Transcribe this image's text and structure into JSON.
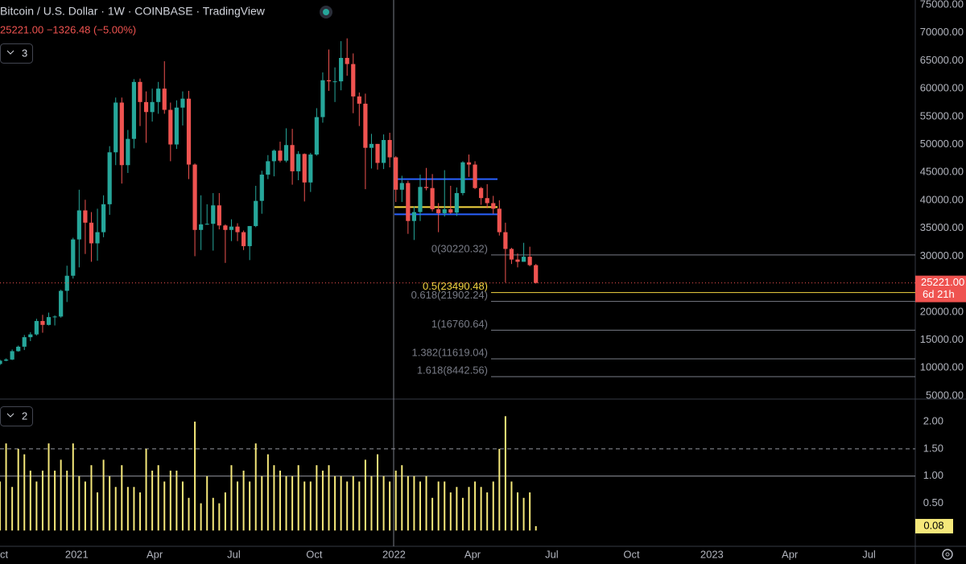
{
  "chart_data": [
    {
      "type": "candlestick",
      "title": "Bitcoin / U.S. Dollar · 1W · COINBASE · TradingView",
      "subtitle": "25221.00  −1326.48 (−5.00%)",
      "legend_count": "3",
      "categories": [
        null,
        null,
        null,
        null,
        null,
        null,
        null,
        null,
        null,
        null,
        null,
        null,
        null,
        null,
        null,
        null,
        null,
        null,
        null,
        null,
        null,
        null,
        null,
        null,
        null,
        null,
        null,
        null,
        null,
        null,
        null,
        null,
        null,
        null,
        null,
        null,
        null,
        null,
        null,
        null,
        null,
        null,
        null,
        null,
        null,
        null,
        null,
        null,
        null,
        null,
        null,
        null,
        null,
        null,
        null,
        null,
        null,
        null,
        null,
        null,
        null,
        null,
        null,
        null,
        null,
        null,
        null,
        null,
        null,
        null,
        null,
        null,
        null,
        null,
        null,
        null,
        null,
        null,
        null,
        null,
        null,
        null,
        null,
        null,
        null,
        null,
        null,
        null,
        null
      ],
      "open": [
        10700,
        11300,
        11500,
        13000,
        13800,
        15500,
        16000,
        18400,
        17700,
        19100,
        19200,
        23800,
        26500,
        33000,
        38200,
        36000,
        32300,
        34300,
        39300,
        48600,
        57500,
        46300,
        51000,
        61200,
        57600,
        55800,
        57600,
        60000,
        56200,
        50000,
        56600,
        58200,
        46400,
        34700,
        35700,
        35800,
        39100,
        35500,
        34700,
        35300,
        34300,
        31800,
        35400,
        39900,
        44600,
        47000,
        48900,
        47100,
        49900,
        45200,
        48300,
        43200,
        48200,
        54900,
        61500,
        61300,
        61300,
        65500,
        64400,
        58600,
        57300,
        49400,
        50100,
        46700,
        50800,
        47700,
        41900,
        43100,
        36300,
        37900,
        42400,
        42200,
        38400,
        37700,
        38400,
        37800,
        41300,
        46800,
        46400,
        42200,
        40400,
        39500,
        38500,
        34300,
        31300,
        29400,
        29000,
        29900,
        28400
      ],
      "high": [
        11500,
        11700,
        13300,
        14000,
        15900,
        16400,
        18800,
        19500,
        19900,
        19400,
        24000,
        28300,
        33300,
        41900,
        40100,
        37900,
        38500,
        40900,
        49700,
        58400,
        58400,
        52600,
        61700,
        61800,
        59500,
        60000,
        61200,
        64900,
        57500,
        57900,
        59500,
        59600,
        46600,
        40900,
        39300,
        41300,
        41300,
        35700,
        36600,
        35900,
        34600,
        35400,
        42600,
        45300,
        48100,
        49100,
        50500,
        52900,
        52800,
        48800,
        48400,
        48500,
        56500,
        62900,
        67000,
        63800,
        68500,
        69000,
        66300,
        59300,
        59100,
        51900,
        50100,
        51800,
        52100,
        47900,
        44400,
        43500,
        38900,
        44600,
        45800,
        44700,
        39500,
        45400,
        42600,
        42300,
        47000,
        48200,
        47000,
        42400,
        42900,
        40800,
        40000,
        36000,
        31500,
        30500,
        32400,
        31700,
        28600
      ],
      "low": [
        10500,
        11200,
        11400,
        12900,
        13200,
        14800,
        15800,
        16300,
        17600,
        17600,
        19000,
        21800,
        26000,
        28000,
        30400,
        29000,
        29200,
        33400,
        37400,
        46300,
        43000,
        44900,
        49300,
        53300,
        50300,
        54100,
        55500,
        55500,
        47000,
        49200,
        53400,
        43800,
        30000,
        31100,
        35600,
        31000,
        34800,
        28800,
        32700,
        32700,
        31100,
        29300,
        35200,
        37600,
        43800,
        44300,
        46800,
        46800,
        42800,
        43600,
        39800,
        41500,
        48000,
        53900,
        59600,
        57600,
        59700,
        62300,
        55600,
        53300,
        42000,
        45700,
        45500,
        45600,
        45900,
        39700,
        39700,
        34000,
        32900,
        36300,
        41800,
        38000,
        34300,
        37100,
        37600,
        37200,
        40900,
        44200,
        42000,
        39200,
        38600,
        37600,
        33700,
        25300,
        28600,
        28000,
        29000,
        28200,
        25100
      ],
      "close": [
        11300,
        11500,
        13000,
        13800,
        15500,
        16000,
        18400,
        17700,
        19100,
        19200,
        23800,
        26500,
        33000,
        38200,
        36000,
        32300,
        34300,
        39300,
        48600,
        57500,
        46300,
        51000,
        61200,
        57600,
        55800,
        57600,
        60000,
        56200,
        50000,
        56600,
        58200,
        46400,
        34700,
        35700,
        35800,
        39100,
        35500,
        34700,
        35300,
        34300,
        31800,
        35400,
        39900,
        44600,
        47000,
        48900,
        47100,
        49900,
        45200,
        48300,
        43200,
        48200,
        54900,
        61500,
        61300,
        61300,
        65500,
        64400,
        58600,
        57300,
        49400,
        50100,
        46700,
        50800,
        47700,
        41900,
        43100,
        36300,
        37900,
        42400,
        42200,
        38400,
        37700,
        38400,
        37800,
        41300,
        46800,
        46400,
        42200,
        40400,
        39500,
        38500,
        34300,
        31300,
        29400,
        29000,
        29900,
        28400,
        25221
      ],
      "up_color": "#26a69a",
      "down_color": "#ef5350",
      "xlim": [
        0,
        150.3
      ],
      "xticks": [
        {
          "value": 0,
          "label": "Oct"
        },
        {
          "value": 12.6,
          "label": "2021"
        },
        {
          "value": 25.4,
          "label": "Apr"
        },
        {
          "value": 38.4,
          "label": "Jul"
        },
        {
          "value": 51.6,
          "label": "Oct"
        },
        {
          "value": 64.7,
          "label": "2022"
        },
        {
          "value": 77.6,
          "label": "Apr"
        },
        {
          "value": 90.6,
          "label": "Jul"
        },
        {
          "value": 103.7,
          "label": "Oct"
        },
        {
          "value": 116.9,
          "label": "2023"
        },
        {
          "value": 129.7,
          "label": "Apr"
        },
        {
          "value": 142.7,
          "label": "Jul"
        }
      ],
      "ylim": [
        4568,
        75864
      ],
      "yticks": [
        {
          "value": 5000,
          "label": "5000.00"
        },
        {
          "value": 10000,
          "label": "10000.00"
        },
        {
          "value": 15000,
          "label": "15000.00"
        },
        {
          "value": 20000,
          "label": "20000.00"
        },
        {
          "value": 25000,
          "label": "25000.00"
        },
        {
          "value": 30000,
          "label": "30000.00"
        },
        {
          "value": 35000,
          "label": "35000.00"
        },
        {
          "value": 40000,
          "label": "40000.00"
        },
        {
          "value": 45000,
          "label": "45000.00"
        },
        {
          "value": 50000,
          "label": "50000.00"
        },
        {
          "value": 55000,
          "label": "55000.00"
        },
        {
          "value": 60000,
          "label": "60000.00"
        },
        {
          "value": 65000,
          "label": "65000.00"
        },
        {
          "value": 70000,
          "label": "70000.00"
        },
        {
          "value": 75000,
          "label": "75000.00"
        }
      ],
      "last_price": {
        "value": 25221,
        "label": "25221.00"
      },
      "countdown": "6d 21h",
      "fib_levels": [
        {
          "value": 30220.32,
          "label": "0(30220.32)",
          "color": "#787b86"
        },
        {
          "value": 23490.48,
          "label": "0.5(23490.48)",
          "color": "#f5d742"
        },
        {
          "value": 21902.24,
          "label": "0.618(21902.24)",
          "color": "#787b86"
        },
        {
          "value": 16760.64,
          "label": "1(16760.64)",
          "color": "#787b86"
        },
        {
          "value": 11619.04,
          "label": "1.382(11619.04)",
          "color": "#787b86"
        },
        {
          "value": 8442.56,
          "label": "1.618(8442.56)",
          "color": "#787b86"
        }
      ],
      "range_lines": [
        {
          "value": 43800,
          "color": "#2962ff"
        },
        {
          "value": 38800,
          "color": "#f5d742"
        },
        {
          "value": 37500,
          "color": "#2962ff"
        }
      ]
    },
    {
      "type": "bar",
      "legend_count": "2",
      "color": "#f5e87a",
      "values": [
        0.9,
        1.6,
        0.8,
        1.5,
        1.4,
        1.1,
        0.9,
        1.1,
        1.6,
        1.1,
        1.3,
        1.1,
        1.6,
        1.0,
        0.9,
        1.2,
        0.7,
        1.3,
        1.0,
        0.8,
        1.2,
        0.8,
        0.8,
        0.7,
        1.5,
        1.1,
        1.2,
        0.9,
        1.1,
        1.1,
        0.9,
        0.6,
        2.0,
        0.5,
        1.0,
        0.6,
        0.5,
        0.7,
        1.2,
        0.9,
        1.1,
        0.9,
        1.6,
        1.0,
        1.4,
        1.2,
        1.1,
        1.0,
        1.0,
        1.2,
        0.9,
        0.9,
        1.2,
        1.1,
        1.2,
        1.0,
        1.0,
        0.9,
        1.0,
        0.9,
        1.3,
        1.0,
        1.4,
        1.0,
        0.9,
        1.1,
        1.2,
        1.0,
        1.0,
        0.9,
        1.0,
        0.6,
        0.9,
        0.9,
        0.7,
        0.8,
        0.6,
        0.8,
        0.9,
        0.8,
        0.7,
        0.9,
        1.5,
        2.1,
        0.9,
        0.7,
        0.6,
        0.7,
        0.08
      ],
      "last_value_label": "0.08",
      "ylim": [
        -0.29,
        2.4
      ],
      "yticks": [
        {
          "value": 0.5,
          "label": "0.50"
        },
        {
          "value": 1,
          "label": "1.00"
        },
        {
          "value": 1.5,
          "label": "1.50"
        },
        {
          "value": 2,
          "label": "2.00"
        }
      ],
      "ref_lines": [
        {
          "value": 1,
          "style": "solid"
        },
        {
          "value": 1.5,
          "style": "dashed"
        }
      ]
    }
  ]
}
